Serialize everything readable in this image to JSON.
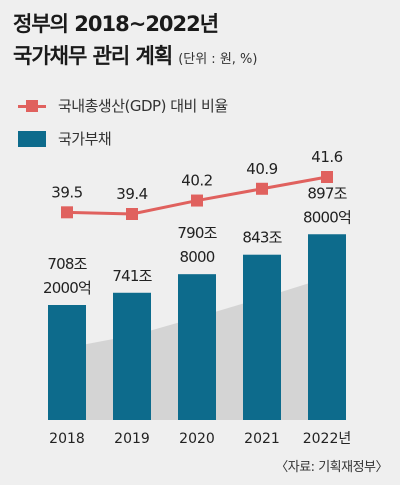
{
  "title_line1": "정부의 2018~2022년",
  "title_line2": "국가채무 관리 계획",
  "unit": "(단위 : 원, %)",
  "source": "〈자료: 기획재정부〉",
  "colors": {
    "bar": "#0d6b8c",
    "line": "#e0615e",
    "shadow": "#d4d4d4"
  },
  "chart_data": {
    "type": "bar",
    "categories": [
      "2018",
      "2019",
      "2020",
      "2021",
      "2022년"
    ],
    "series": [
      {
        "name": "국가부채",
        "type": "bar",
        "values": [
          708.2,
          741,
          790.8,
          843,
          897.8
        ],
        "labels": [
          [
            "708조",
            "2000억"
          ],
          [
            "741조"
          ],
          [
            "790조",
            "8000"
          ],
          [
            "843조"
          ],
          [
            "897조",
            "8000억"
          ]
        ]
      },
      {
        "name": "국내총생산(GDP) 대비 비율",
        "type": "line",
        "values": [
          39.5,
          39.4,
          40.2,
          40.9,
          41.6
        ],
        "labels": [
          "39.5",
          "39.4",
          "40.2",
          "40.9",
          "41.6"
        ]
      }
    ]
  }
}
